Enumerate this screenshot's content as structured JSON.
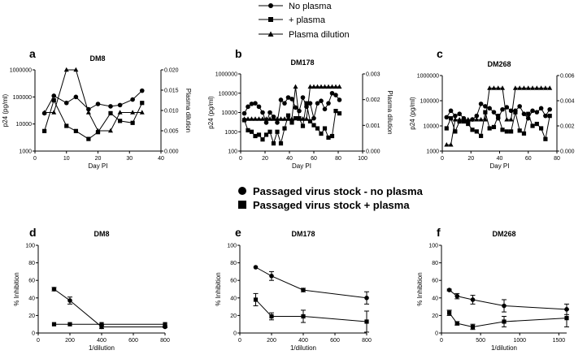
{
  "top_legend": {
    "entries": [
      {
        "label": "No plasma",
        "marker": "circle"
      },
      {
        "label": "+ plasma",
        "marker": "square"
      },
      {
        "label": "Plasma dilution",
        "marker": "triangle"
      }
    ]
  },
  "mid_legend": {
    "entries": [
      {
        "label": "Passaged virus stock - no plasma",
        "marker": "circle"
      },
      {
        "label": "Passaged virus stock  + plasma",
        "marker": "square"
      }
    ]
  },
  "chart_data": [
    {
      "panel": "a",
      "title": "DM8",
      "type": "line",
      "xlabel": "Day PI",
      "ylabel": "p24 (pg/ml)",
      "y2label": "Plasma dilution",
      "xlim": [
        0,
        40
      ],
      "xticks": [
        "0",
        "10",
        "20",
        "30",
        "40"
      ],
      "yscale": "log",
      "ylim": [
        1000,
        1000000
      ],
      "yticks": [
        "1000",
        "10000",
        "100000",
        "1000000"
      ],
      "y2lim": [
        0,
        0.02
      ],
      "y2ticks": [
        "0.000",
        "0.005",
        "0.010",
        "0.015",
        "0.020"
      ],
      "series": [
        {
          "name": "No plasma",
          "axis": "left",
          "marker": "circle",
          "x": [
            3,
            6,
            10,
            13,
            17,
            20,
            24,
            27,
            31,
            34
          ],
          "y": [
            25000,
            110000,
            60000,
            100000,
            35000,
            55000,
            45000,
            50000,
            80000,
            170000
          ]
        },
        {
          "name": "+ plasma",
          "axis": "left",
          "marker": "square",
          "x": [
            3,
            6,
            10,
            13,
            17,
            20,
            24,
            27,
            31,
            34
          ],
          "y": [
            5500,
            75000,
            8500,
            5500,
            2800,
            5000,
            25000,
            13000,
            11000,
            60000
          ]
        },
        {
          "name": "Plasma dilution",
          "axis": "right",
          "marker": "triangle",
          "x": [
            3,
            6,
            10,
            13,
            17,
            20,
            24,
            27,
            31,
            34
          ],
          "y": [
            0.0095,
            0.0095,
            0.02,
            0.02,
            0.0095,
            0.005,
            0.005,
            0.0095,
            0.0095,
            0.0095
          ]
        }
      ]
    },
    {
      "panel": "b",
      "title": "DM178",
      "type": "line",
      "xlabel": "Day PI",
      "ylabel": "p24 (pg/ml)",
      "y2label": "Plasma dilution",
      "xlim": [
        0,
        100
      ],
      "xticks": [
        "0",
        "20",
        "40",
        "60",
        "80",
        "100"
      ],
      "yscale": "log",
      "ylim": [
        100,
        1000000
      ],
      "yticks": [
        "100",
        "1000",
        "10000",
        "100000",
        "1000000"
      ],
      "y2lim": [
        0,
        0.003
      ],
      "y2ticks": [
        "0.000",
        "0.001",
        "0.002",
        "0.003"
      ],
      "series": [
        {
          "name": "No plasma",
          "axis": "left",
          "marker": "circle",
          "x": [
            3,
            6,
            9,
            12,
            15,
            18,
            21,
            24,
            27,
            30,
            33,
            36,
            39,
            42,
            45,
            48,
            51,
            54,
            57,
            60,
            63,
            66,
            69,
            72,
            75,
            78,
            81
          ],
          "y": [
            9000,
            20000,
            28000,
            30000,
            20000,
            10000,
            3000,
            10000,
            6000,
            3000,
            45000,
            30000,
            60000,
            50000,
            18000,
            12000,
            60000,
            20000,
            30000,
            5000,
            30000,
            40000,
            15000,
            30000,
            100000,
            80000,
            45000
          ]
        },
        {
          "name": "+ plasma",
          "axis": "left",
          "marker": "square",
          "x": [
            3,
            6,
            9,
            12,
            15,
            18,
            21,
            24,
            27,
            30,
            33,
            36,
            39,
            42,
            45,
            48,
            51,
            54,
            57,
            60,
            63,
            66,
            69,
            72,
            75,
            78,
            81
          ],
          "y": [
            4000,
            1200,
            1000,
            600,
            700,
            400,
            700,
            1000,
            250,
            1000,
            250,
            1500,
            7000,
            3000,
            5000,
            5000,
            2000,
            30000,
            3500,
            2200,
            1500,
            800,
            1500,
            500,
            600,
            12000,
            9000
          ]
        },
        {
          "name": "Plasma dilution",
          "axis": "right",
          "marker": "triangle",
          "x": [
            3,
            6,
            9,
            12,
            15,
            18,
            21,
            24,
            27,
            30,
            33,
            36,
            39,
            42,
            45,
            48,
            51,
            54,
            57,
            60,
            63,
            66,
            69,
            72,
            75,
            78,
            81
          ],
          "y": [
            0.00125,
            0.00125,
            0.00125,
            0.00125,
            0.00125,
            0.00125,
            0.00125,
            0.00125,
            0.00125,
            0.00125,
            0.00125,
            0.00125,
            0.00125,
            0.00125,
            0.0025,
            0.00125,
            0.00125,
            0.00125,
            0.0025,
            0.0025,
            0.0025,
            0.0025,
            0.0025,
            0.0025,
            0.0025,
            0.0025,
            0.0025
          ]
        }
      ]
    },
    {
      "panel": "c",
      "title": "DM268",
      "type": "line",
      "xlabel": "Day PI",
      "ylabel": "p24 (pg/ml)",
      "y2label": "",
      "xlim": [
        0,
        80
      ],
      "xticks": [
        "0",
        "20",
        "40",
        "60",
        "80"
      ],
      "yscale": "log",
      "ylim": [
        1000,
        1000000
      ],
      "yticks": [
        "1000",
        "10000",
        "100000",
        "1000000"
      ],
      "y2lim": [
        0,
        0.006
      ],
      "y2ticks": [
        "0.000",
        "0.002",
        "0.004",
        "0.006"
      ],
      "series": [
        {
          "name": "No plasma",
          "axis": "left",
          "marker": "circle",
          "x": [
            3,
            6,
            9,
            12,
            15,
            18,
            21,
            24,
            27,
            30,
            33,
            36,
            39,
            42,
            45,
            48,
            51,
            54,
            57,
            60,
            63,
            66,
            69,
            72,
            75
          ],
          "y": [
            22000,
            40000,
            25000,
            30000,
            20000,
            15000,
            18000,
            25000,
            75000,
            60000,
            50000,
            35000,
            20000,
            45000,
            55000,
            40000,
            40000,
            60000,
            30000,
            20000,
            40000,
            35000,
            50000,
            25000,
            45000
          ]
        },
        {
          "name": "+ plasma",
          "axis": "left",
          "marker": "square",
          "x": [
            3,
            6,
            9,
            12,
            15,
            18,
            21,
            24,
            27,
            30,
            33,
            36,
            39,
            42,
            45,
            48,
            51,
            54,
            57,
            60,
            63,
            66,
            69,
            72,
            75
          ],
          "y": [
            8000,
            20000,
            6000,
            15000,
            15000,
            12000,
            7000,
            6000,
            4000,
            35000,
            8000,
            9000,
            25000,
            7000,
            6000,
            6000,
            35000,
            6500,
            5000,
            30000,
            10000,
            12000,
            8000,
            3000,
            25000
          ]
        },
        {
          "name": "Plasma dilution",
          "axis": "right",
          "marker": "triangle",
          "x": [
            3,
            6,
            9,
            12,
            15,
            18,
            21,
            24,
            27,
            30,
            33,
            36,
            39,
            42,
            45,
            48,
            51,
            54,
            57,
            60,
            63,
            66,
            69,
            72,
            75
          ],
          "y": [
            0.0005,
            0.0005,
            0.0025,
            0.0025,
            0.0025,
            0.0025,
            0.0025,
            0.0025,
            0.0025,
            0.0025,
            0.005,
            0.005,
            0.005,
            0.005,
            0.0025,
            0.0025,
            0.005,
            0.005,
            0.005,
            0.005,
            0.005,
            0.005,
            0.005,
            0.005,
            0.005
          ]
        }
      ]
    },
    {
      "panel": "d",
      "title": "DM8",
      "type": "line",
      "xlabel": "1/dilution",
      "ylabel": "% Inhibition",
      "xlim": [
        0,
        800
      ],
      "xticks": [
        "0",
        "200",
        "400",
        "600",
        "800"
      ],
      "ylim": [
        0,
        100
      ],
      "yticks": [
        "0",
        "20",
        "40",
        "60",
        "80",
        "100"
      ],
      "series": [
        {
          "name": "Passaged virus stock - no plasma",
          "marker": "circle",
          "x": [
            100,
            200,
            400,
            800
          ],
          "y": [
            50,
            37,
            7,
            7
          ],
          "err": [
            2,
            4,
            2,
            1
          ]
        },
        {
          "name": "Passaged virus stock  + plasma",
          "marker": "square",
          "x": [
            100,
            200,
            400,
            800
          ],
          "y": [
            10,
            10,
            10,
            10
          ],
          "err": [
            0,
            0,
            0,
            0
          ]
        }
      ]
    },
    {
      "panel": "e",
      "title": "DM178",
      "type": "line",
      "xlabel": "1/dilution",
      "ylabel": "% Inhibition",
      "xlim": [
        0,
        800
      ],
      "xticks": [
        "0",
        "200",
        "400",
        "600",
        "800"
      ],
      "ylim": [
        0,
        100
      ],
      "yticks": [
        "0",
        "20",
        "40",
        "60",
        "80",
        "100"
      ],
      "series": [
        {
          "name": "Passaged virus stock - no plasma",
          "marker": "circle",
          "x": [
            100,
            200,
            400,
            800
          ],
          "y": [
            75,
            65,
            49,
            40
          ],
          "err": [
            0,
            5,
            2,
            7
          ]
        },
        {
          "name": "Passaged virus stock  + plasma",
          "marker": "square",
          "x": [
            100,
            200,
            400,
            800
          ],
          "y": [
            38,
            19,
            19,
            13
          ],
          "err": [
            7,
            4,
            7,
            12
          ]
        }
      ]
    },
    {
      "panel": "f",
      "title": "DM268",
      "type": "line",
      "xlabel": "1/dilution",
      "ylabel": "% Inhibition",
      "xlim": [
        0,
        1600
      ],
      "xticks": [
        "0",
        "500",
        "1000",
        "1500"
      ],
      "ylim": [
        0,
        100
      ],
      "yticks": [
        "0",
        "20",
        "40",
        "60",
        "80",
        "100"
      ],
      "series": [
        {
          "name": "Passaged virus stock - no plasma",
          "marker": "circle",
          "x": [
            100,
            200,
            400,
            800,
            1600
          ],
          "y": [
            49,
            42,
            38,
            31,
            27
          ],
          "err": [
            1,
            3,
            5,
            7,
            6
          ]
        },
        {
          "name": "Passaged virus stock  + plasma",
          "marker": "square",
          "x": [
            100,
            200,
            400,
            800,
            1600
          ],
          "y": [
            23,
            11,
            7,
            13,
            17
          ],
          "err": [
            3,
            2,
            3,
            6,
            10
          ]
        }
      ]
    }
  ]
}
